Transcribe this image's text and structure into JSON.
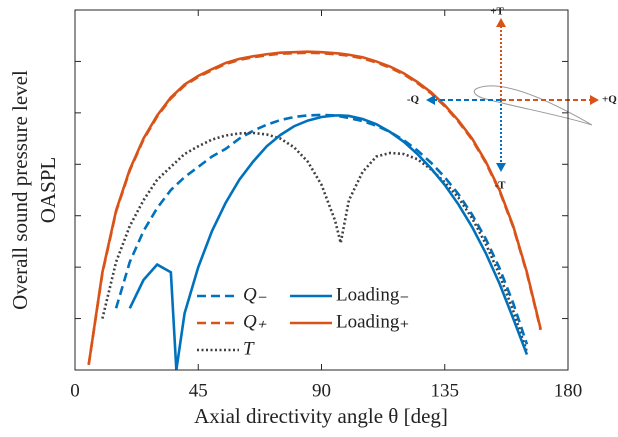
{
  "chart_data": {
    "type": "line",
    "x_label": "Axial directivity angle θ [deg]",
    "y_label": [
      "Overall sound pressure level",
      "OASPL"
    ],
    "x": [
      5,
      10,
      15,
      20,
      25,
      30,
      35,
      37,
      40,
      45,
      50,
      55,
      60,
      65,
      70,
      75,
      80,
      85,
      90,
      95,
      97,
      100,
      105,
      110,
      115,
      120,
      125,
      130,
      135,
      140,
      145,
      150,
      155,
      160,
      165,
      170,
      175
    ],
    "xlim": [
      0,
      180
    ],
    "xticks": [
      0,
      45,
      90,
      135,
      180
    ],
    "ylim": [
      0,
      7
    ],
    "yticks": [
      1,
      2,
      3,
      4,
      5,
      6
    ],
    "ytick_labels": false,
    "series": [
      {
        "name": "Q₋",
        "color": "#0072BD",
        "line_style": "dashed",
        "values": [
          null,
          null,
          1.2,
          2.1,
          2.7,
          3.15,
          3.5,
          3.6,
          3.75,
          3.95,
          4.15,
          4.3,
          4.5,
          4.65,
          4.77,
          4.86,
          4.92,
          4.95,
          4.96,
          4.95,
          4.93,
          4.9,
          4.84,
          4.75,
          4.63,
          4.47,
          4.27,
          4.03,
          3.75,
          3.42,
          3.02,
          2.55,
          1.98,
          1.3,
          0.5,
          null,
          null
        ]
      },
      {
        "name": "Q₊",
        "color": "#D95319",
        "line_style": "dashed",
        "values": [
          0.1,
          1.88,
          3.08,
          3.88,
          4.48,
          4.93,
          5.28,
          5.38,
          5.53,
          5.7,
          5.83,
          5.95,
          6.03,
          6.08,
          6.12,
          6.15,
          6.16,
          6.17,
          6.16,
          6.14,
          6.13,
          6.11,
          6.06,
          5.98,
          5.88,
          5.75,
          5.58,
          5.38,
          5.13,
          4.83,
          4.48,
          4.03,
          3.48,
          2.78,
          1.88,
          0.78,
          null
        ]
      },
      {
        "name": "T",
        "color": "#404040",
        "line_style": "dotted",
        "values": [
          null,
          1.0,
          2.1,
          2.8,
          3.3,
          3.7,
          3.95,
          4.05,
          4.2,
          4.35,
          4.48,
          4.56,
          4.6,
          4.61,
          4.58,
          4.5,
          4.33,
          4.05,
          3.6,
          2.9,
          2.47,
          3.3,
          3.85,
          4.15,
          4.22,
          4.2,
          4.1,
          3.9,
          3.65,
          3.35,
          2.95,
          2.45,
          1.85,
          1.15,
          0.35,
          null,
          null
        ]
      },
      {
        "name": "Loading₋",
        "color": "#0072BD",
        "line_style": "solid",
        "values": [
          null,
          null,
          null,
          1.2,
          1.75,
          2.05,
          1.9,
          0.0,
          1.1,
          2.0,
          2.7,
          3.25,
          3.7,
          4.05,
          4.35,
          4.57,
          4.74,
          4.85,
          4.92,
          4.95,
          4.95,
          4.94,
          4.88,
          4.78,
          4.63,
          4.44,
          4.2,
          3.92,
          3.6,
          3.22,
          2.78,
          2.27,
          1.68,
          1.0,
          0.3,
          null,
          null
        ]
      },
      {
        "name": "Loading₊",
        "color": "#D95319",
        "line_style": "solid",
        "values": [
          0.1,
          1.9,
          3.1,
          3.9,
          4.5,
          4.95,
          5.3,
          5.4,
          5.55,
          5.72,
          5.85,
          5.97,
          6.05,
          6.1,
          6.14,
          6.17,
          6.18,
          6.19,
          6.18,
          6.16,
          6.15,
          6.13,
          6.08,
          6.0,
          5.9,
          5.77,
          5.6,
          5.4,
          5.15,
          4.85,
          4.5,
          4.05,
          3.5,
          2.8,
          1.9,
          0.8,
          null
        ]
      }
    ],
    "annotations": [
      "+T",
      "-T",
      "-Q",
      "+Q"
    ]
  }
}
